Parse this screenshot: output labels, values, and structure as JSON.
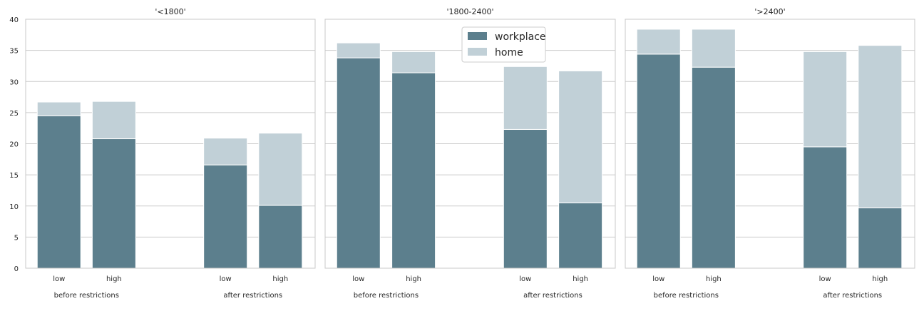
{
  "chart_data": [
    {
      "type": "bar",
      "stacked": true,
      "title": "'<1800'",
      "categories": [
        "low",
        "high",
        "low",
        "high"
      ],
      "groups": [
        "before restrictions",
        "after restrictions"
      ],
      "series": [
        {
          "name": "workplace",
          "values": [
            24.5,
            20.8,
            16.6,
            10.1
          ]
        },
        {
          "name": "home",
          "values": [
            2.2,
            6.0,
            4.3,
            11.6
          ]
        }
      ],
      "ylim": [
        0,
        40
      ],
      "yticks": [
        "0",
        "5",
        "10",
        "15",
        "20",
        "25",
        "30",
        "35",
        "40"
      ],
      "grid": true
    },
    {
      "type": "bar",
      "stacked": true,
      "title": "'1800-2400'",
      "categories": [
        "low",
        "high",
        "low",
        "high"
      ],
      "groups": [
        "before restrictions",
        "after restrictions"
      ],
      "series": [
        {
          "name": "workplace",
          "values": [
            33.8,
            31.4,
            22.3,
            10.5
          ]
        },
        {
          "name": "home",
          "values": [
            2.4,
            3.4,
            10.1,
            21.2
          ]
        }
      ],
      "ylim": [
        0,
        40
      ],
      "grid": true,
      "legend": {
        "position": "top-center",
        "entries": [
          "workplace",
          "home"
        ]
      }
    },
    {
      "type": "bar",
      "stacked": true,
      "title": "'>2400'",
      "categories": [
        "low",
        "high",
        "low",
        "high"
      ],
      "groups": [
        "before restrictions",
        "after restrictions"
      ],
      "series": [
        {
          "name": "workplace",
          "values": [
            34.4,
            32.3,
            19.5,
            9.7
          ]
        },
        {
          "name": "home",
          "values": [
            4.0,
            6.1,
            15.3,
            26.1
          ]
        }
      ],
      "ylim": [
        0,
        40
      ],
      "grid": true
    }
  ],
  "colors": {
    "workplace": "#5c7f8d",
    "home": "#c1d0d7",
    "grid": "#cccccc",
    "axes": "#c8c8c8"
  }
}
